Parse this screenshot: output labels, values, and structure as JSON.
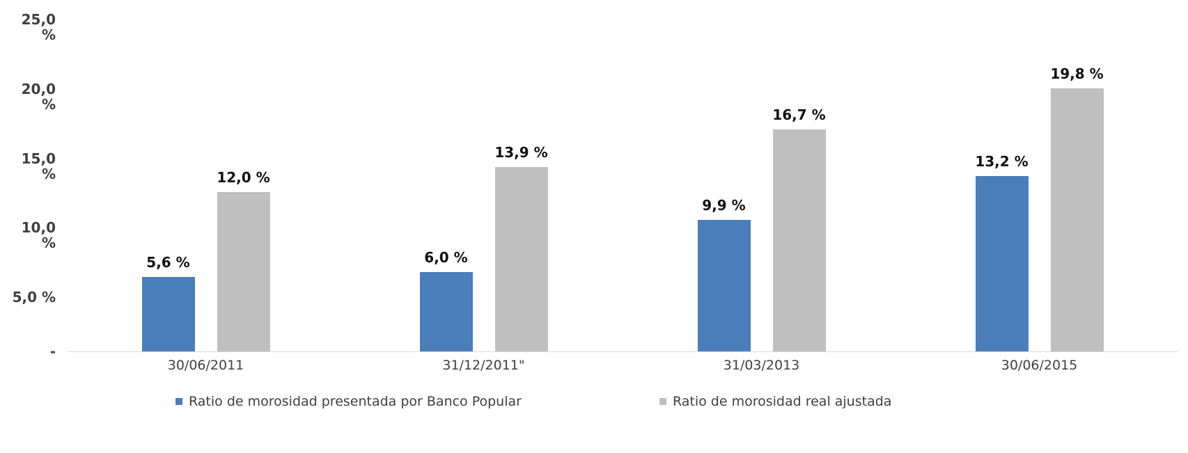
{
  "chart_data": {
    "type": "bar",
    "title": "",
    "xlabel": "",
    "ylabel": "",
    "categories": [
      "30/06/2011",
      "31/12/2011\"",
      "31/03/2013",
      "30/06/2015"
    ],
    "series": [
      {
        "name": "Ratio de morosidad presentada por Banco Popular",
        "key": "morosidad-presentada",
        "color": "#4A7EBB",
        "values": [
          5.6,
          6.0,
          9.9,
          13.2
        ],
        "labels": [
          "5,6 %",
          "6,0 %",
          "9,9 %",
          "13,2 %"
        ]
      },
      {
        "name": "Ratio de morosidad real ajustada",
        "key": "morosidad-real-ajustada",
        "color": "#BFBFBF",
        "values": [
          12.0,
          13.9,
          16.7,
          19.8
        ],
        "labels": [
          "12,0 %",
          "13,9 %",
          "16,7 %",
          "19,8 %"
        ]
      }
    ],
    "y_ticks": [
      "25,0 %",
      "20,0 %",
      "15,0 %",
      "10,0 %",
      "5,0 %",
      "-"
    ],
    "ylim": [
      0,
      25
    ],
    "grid": false,
    "legend_position": "bottom"
  },
  "legend": {
    "items": [
      {
        "label": "Ratio de morosidad presentada por Banco Popular",
        "color": "#4A7EBB"
      },
      {
        "label": "Ratio de morosidad real ajustada",
        "color": "#BFBFBF"
      }
    ]
  }
}
